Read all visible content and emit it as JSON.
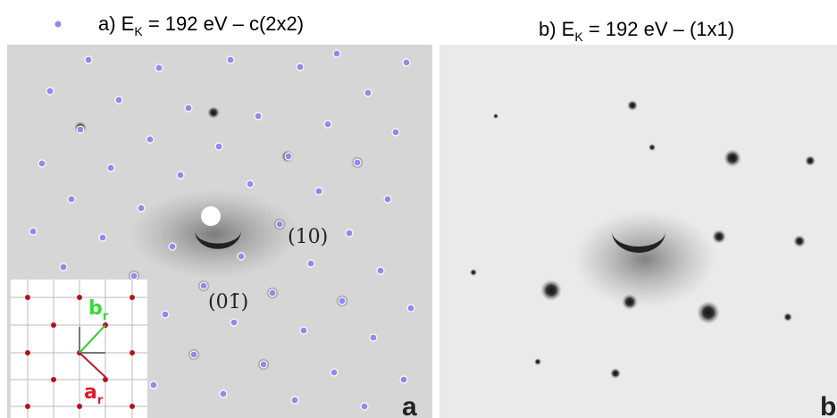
{
  "panel_a": {
    "title_prefix": "a) E",
    "title_sub": "K",
    "title_suffix": " = 192 eV – c(2x2)",
    "label_10": "(10)",
    "label_01": "(01̄)",
    "corner_letter": "a",
    "inset": {
      "b_main": "b",
      "b_sub": "r",
      "a_main": "a",
      "a_sub": "r"
    }
  },
  "panel_b": {
    "title_prefix": "b) E",
    "title_sub": "K",
    "title_suffix": " = 192 eV – (1x1)",
    "corner_letter": "b"
  }
}
